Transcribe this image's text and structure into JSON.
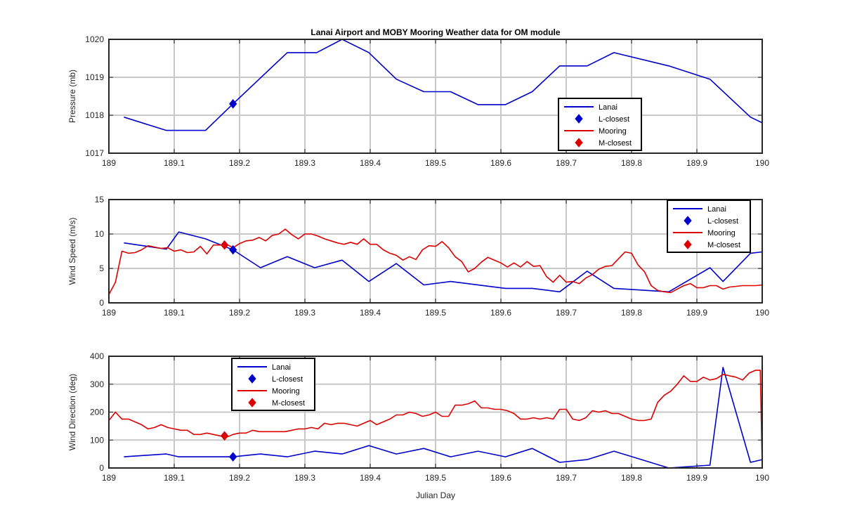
{
  "figure": {
    "title": "Lanai Airport and MOBY Mooring Weather data for OM module",
    "xlabel": "Julian Day"
  },
  "colors": {
    "lanai": "#0000cc",
    "mooring": "#dd0000",
    "grid": "#c8c8c8",
    "axis": "#262626"
  },
  "chart_data": [
    {
      "type": "line",
      "ylabel": "Pressure (mb)",
      "xlim": [
        189,
        190
      ],
      "ylim": [
        1017,
        1020
      ],
      "xticks": [
        189,
        189.1,
        189.2,
        189.3,
        189.4,
        189.5,
        189.6,
        189.7,
        189.8,
        189.9,
        190
      ],
      "xtick_labels": [
        "189",
        "189.1",
        "189.2",
        "189.3",
        "189.4",
        "189.5",
        "189.6",
        "189.7",
        "189.8",
        "189.9",
        "190"
      ],
      "yticks": [
        1017,
        1018,
        1019,
        1020
      ],
      "ytick_labels": [
        "1017",
        "1018",
        "1019",
        "1020"
      ],
      "grid": true,
      "legend": {
        "placement": "lower-right",
        "entries": [
          "Lanai",
          "L-closest",
          "Mooring",
          "M-closest"
        ]
      },
      "series": [
        {
          "name": "Lanai",
          "x": [
            189.023,
            189.088,
            189.148,
            189.19,
            189.273,
            189.318,
            189.357,
            189.398,
            189.44,
            189.482,
            189.523,
            189.565,
            189.607,
            189.648,
            189.69,
            189.732,
            189.773,
            189.857,
            189.92,
            189.982,
            190
          ],
          "y": [
            1017.95,
            1017.6,
            1017.6,
            1018.3,
            1019.65,
            1019.65,
            1020.0,
            1019.65,
            1018.95,
            1018.62,
            1018.62,
            1018.28,
            1018.28,
            1018.62,
            1019.3,
            1019.3,
            1019.65,
            1019.3,
            1018.95,
            1017.95,
            1017.8
          ]
        }
      ],
      "markers": [
        {
          "name": "L-closest",
          "x": 189.19,
          "y": 1018.3
        }
      ]
    },
    {
      "type": "line",
      "ylabel": "Wind Speed (m/s)",
      "xlim": [
        189,
        190
      ],
      "ylim": [
        0,
        15
      ],
      "xticks": [
        189,
        189.1,
        189.2,
        189.3,
        189.4,
        189.5,
        189.6,
        189.7,
        189.8,
        189.9,
        190
      ],
      "xtick_labels": [
        "189",
        "189.1",
        "189.2",
        "189.3",
        "189.4",
        "189.5",
        "189.6",
        "189.7",
        "189.8",
        "189.9",
        "190"
      ],
      "yticks": [
        0,
        5,
        10,
        15
      ],
      "ytick_labels": [
        "0",
        "5",
        "10",
        "15"
      ],
      "grid": true,
      "legend": {
        "placement": "top-right",
        "entries": [
          "Lanai",
          "L-closest",
          "Mooring",
          "M-closest"
        ]
      },
      "series": [
        {
          "name": "Lanai",
          "x": [
            189.023,
            189.088,
            189.107,
            189.148,
            189.19,
            189.232,
            189.273,
            189.315,
            189.357,
            189.398,
            189.44,
            189.482,
            189.523,
            189.607,
            189.648,
            189.69,
            189.732,
            189.773,
            189.857,
            189.92,
            189.94,
            189.982,
            190
          ],
          "y": [
            8.7,
            7.8,
            10.3,
            9.3,
            7.7,
            5.1,
            6.7,
            5.1,
            6.2,
            3.1,
            5.7,
            2.6,
            3.1,
            2.1,
            2.1,
            1.6,
            4.6,
            2.1,
            1.6,
            5.1,
            3.1,
            7.2,
            7.4
          ]
        },
        {
          "name": "Mooring",
          "x": [
            189.0,
            189.01,
            189.02,
            189.03,
            189.04,
            189.05,
            189.06,
            189.07,
            189.08,
            189.09,
            189.1,
            189.11,
            189.12,
            189.13,
            189.14,
            189.15,
            189.16,
            189.17,
            189.18,
            189.19,
            189.2,
            189.21,
            189.22,
            189.23,
            189.24,
            189.25,
            189.26,
            189.27,
            189.28,
            189.29,
            189.3,
            189.31,
            189.32,
            189.33,
            189.34,
            189.35,
            189.36,
            189.37,
            189.38,
            189.39,
            189.4,
            189.41,
            189.42,
            189.43,
            189.44,
            189.45,
            189.46,
            189.47,
            189.48,
            189.49,
            189.5,
            189.51,
            189.52,
            189.53,
            189.54,
            189.55,
            189.56,
            189.57,
            189.58,
            189.59,
            189.6,
            189.61,
            189.62,
            189.63,
            189.64,
            189.65,
            189.66,
            189.67,
            189.68,
            189.69,
            189.7,
            189.71,
            189.72,
            189.73,
            189.74,
            189.75,
            189.76,
            189.77,
            189.78,
            189.79,
            189.8,
            189.81,
            189.82,
            189.83,
            189.84,
            189.85,
            189.86,
            189.87,
            189.88,
            189.89,
            189.9,
            189.91,
            189.92,
            189.93,
            189.94,
            189.95,
            189.96,
            189.97,
            189.98,
            189.99,
            190.0
          ],
          "y": [
            1.2,
            3.0,
            7.5,
            7.2,
            7.3,
            7.7,
            8.3,
            8.1,
            7.9,
            8.0,
            7.5,
            7.7,
            7.3,
            7.4,
            8.2,
            7.1,
            8.4,
            8.4,
            8.5,
            8.0,
            8.6,
            9.0,
            9.1,
            9.5,
            9.0,
            9.8,
            10.0,
            10.7,
            9.9,
            9.3,
            10.0,
            10.0,
            9.7,
            9.3,
            9.0,
            8.7,
            8.5,
            8.8,
            8.5,
            9.3,
            8.5,
            8.5,
            7.7,
            7.2,
            6.9,
            6.2,
            6.7,
            6.3,
            7.7,
            8.3,
            8.2,
            8.9,
            8.0,
            6.7,
            6.0,
            4.5,
            5.0,
            5.9,
            6.6,
            6.2,
            5.8,
            5.2,
            5.8,
            5.2,
            6.0,
            5.3,
            5.4,
            3.8,
            3.0,
            4.0,
            3.0,
            3.1,
            2.8,
            3.6,
            4.1,
            4.9,
            5.3,
            5.4,
            6.4,
            7.4,
            7.2,
            5.5,
            4.5,
            2.5,
            1.8,
            1.6,
            1.5,
            2.0,
            2.5,
            2.8,
            2.2,
            2.2,
            2.5,
            2.5,
            2.0,
            2.3,
            2.4,
            2.5,
            2.5,
            2.5,
            2.6
          ]
        }
      ],
      "markers": [
        {
          "name": "L-closest",
          "x": 189.19,
          "y": 7.7
        },
        {
          "name": "M-closest",
          "x": 189.177,
          "y": 8.4
        }
      ]
    },
    {
      "type": "line",
      "ylabel": "Wind Direction (deg)",
      "xlim": [
        189,
        190
      ],
      "ylim": [
        0,
        400
      ],
      "xticks": [
        189,
        189.1,
        189.2,
        189.3,
        189.4,
        189.5,
        189.6,
        189.7,
        189.8,
        189.9,
        190
      ],
      "xtick_labels": [
        "189",
        "189.1",
        "189.2",
        "189.3",
        "189.4",
        "189.5",
        "189.6",
        "189.7",
        "189.8",
        "189.9",
        "190"
      ],
      "yticks": [
        0,
        100,
        200,
        300,
        400
      ],
      "ytick_labels": [
        "0",
        "100",
        "200",
        "300",
        "400"
      ],
      "grid": true,
      "legend": {
        "placement": "top-left",
        "entries": [
          "Lanai",
          "L-closest",
          "Mooring",
          "M-closest"
        ]
      },
      "series": [
        {
          "name": "Lanai",
          "x": [
            189.023,
            189.088,
            189.107,
            189.148,
            189.19,
            189.232,
            189.273,
            189.315,
            189.357,
            189.398,
            189.44,
            189.482,
            189.523,
            189.565,
            189.607,
            189.648,
            189.69,
            189.732,
            189.773,
            189.857,
            189.92,
            189.94,
            189.982,
            190
          ],
          "y": [
            40,
            50,
            40,
            40,
            40,
            50,
            40,
            60,
            50,
            80,
            50,
            70,
            40,
            60,
            40,
            70,
            20,
            30,
            60,
            0,
            10,
            360,
            20,
            30
          ]
        },
        {
          "name": "Mooring",
          "x": [
            189.0,
            189.01,
            189.02,
            189.03,
            189.04,
            189.05,
            189.06,
            189.07,
            189.08,
            189.09,
            189.1,
            189.11,
            189.12,
            189.13,
            189.14,
            189.15,
            189.16,
            189.17,
            189.18,
            189.19,
            189.2,
            189.21,
            189.22,
            189.23,
            189.24,
            189.25,
            189.26,
            189.27,
            189.28,
            189.29,
            189.3,
            189.31,
            189.32,
            189.33,
            189.34,
            189.35,
            189.36,
            189.37,
            189.38,
            189.39,
            189.4,
            189.41,
            189.42,
            189.43,
            189.44,
            189.45,
            189.46,
            189.47,
            189.48,
            189.49,
            189.5,
            189.51,
            189.52,
            189.53,
            189.54,
            189.55,
            189.56,
            189.57,
            189.58,
            189.59,
            189.6,
            189.61,
            189.62,
            189.63,
            189.64,
            189.65,
            189.66,
            189.67,
            189.68,
            189.69,
            189.7,
            189.71,
            189.72,
            189.73,
            189.74,
            189.75,
            189.76,
            189.77,
            189.78,
            189.79,
            189.8,
            189.81,
            189.82,
            189.83,
            189.84,
            189.85,
            189.86,
            189.87,
            189.88,
            189.89,
            189.9,
            189.91,
            189.92,
            189.93,
            189.94,
            189.95,
            189.96,
            189.97,
            189.98,
            189.99,
            189.997,
            190.0
          ],
          "y": [
            170,
            200,
            175,
            175,
            165,
            155,
            140,
            145,
            155,
            145,
            140,
            135,
            135,
            120,
            120,
            125,
            120,
            115,
            110,
            120,
            125,
            125,
            135,
            130,
            130,
            130,
            130,
            130,
            135,
            140,
            140,
            145,
            140,
            160,
            155,
            160,
            160,
            155,
            150,
            160,
            170,
            155,
            165,
            175,
            190,
            190,
            200,
            195,
            185,
            190,
            200,
            185,
            185,
            225,
            225,
            230,
            240,
            215,
            215,
            210,
            210,
            205,
            195,
            175,
            175,
            180,
            175,
            180,
            175,
            210,
            210,
            175,
            170,
            180,
            205,
            200,
            205,
            195,
            195,
            185,
            175,
            170,
            170,
            175,
            235,
            260,
            275,
            300,
            330,
            310,
            310,
            325,
            315,
            320,
            335,
            330,
            325,
            315,
            340,
            350,
            350,
            5
          ]
        }
      ],
      "markers": [
        {
          "name": "L-closest",
          "x": 189.19,
          "y": 40
        },
        {
          "name": "M-closest",
          "x": 189.177,
          "y": 115
        }
      ]
    }
  ]
}
